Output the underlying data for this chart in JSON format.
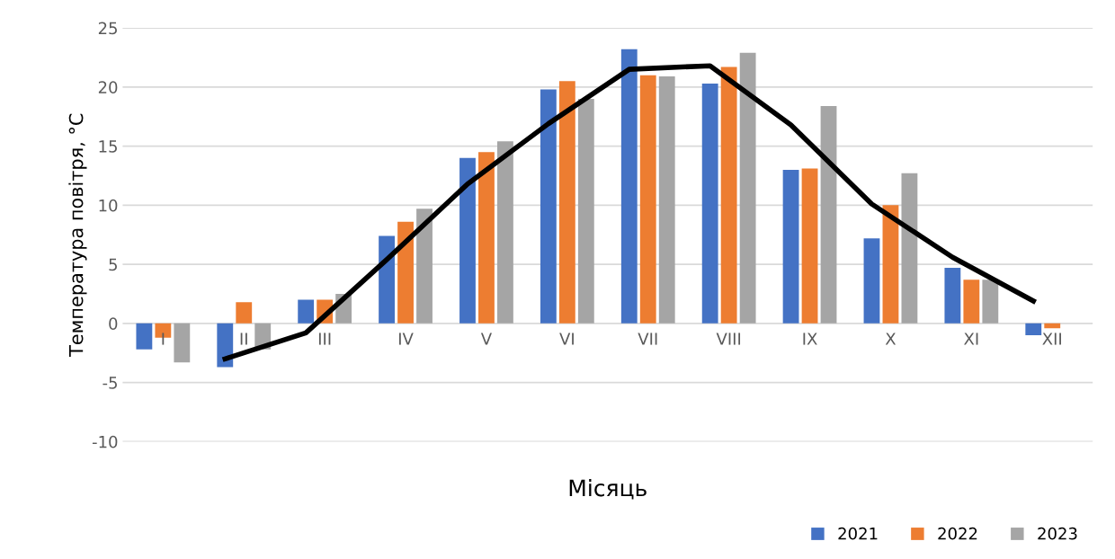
{
  "chart_data": {
    "type": "bar",
    "xlabel": "Місяць",
    "ylabel": "Температура повітря, °C",
    "categories": [
      "I",
      "II",
      "III",
      "IV",
      "V",
      "VI",
      "VII",
      "VIII",
      "IX",
      "X",
      "XI",
      "XII"
    ],
    "series": [
      {
        "name": "2021",
        "color": "#4472c4",
        "values": [
          -2.2,
          -3.7,
          2.0,
          7.4,
          14.0,
          19.8,
          23.2,
          20.3,
          13.0,
          7.2,
          4.7,
          -1.0
        ]
      },
      {
        "name": "2022",
        "color": "#ed7d31",
        "values": [
          -1.2,
          1.8,
          2.0,
          8.6,
          14.5,
          20.5,
          21.0,
          21.7,
          13.1,
          10.0,
          3.7,
          -0.4
        ]
      },
      {
        "name": "2023",
        "color": "#a5a5a5",
        "values": [
          -3.3,
          -2.2,
          2.5,
          9.7,
          15.4,
          19.0,
          20.9,
          22.9,
          18.4,
          12.7,
          3.7,
          0
        ]
      },
      {
        "type": "line",
        "color": "#000000",
        "values": [
          null,
          -3.0,
          -0.8,
          5.4,
          11.8,
          16.9,
          21.5,
          21.8,
          16.8,
          10.1,
          5.6,
          1.9
        ]
      }
    ],
    "ylim": [
      -10,
      25
    ],
    "yticks": [
      -10,
      -5,
      0,
      5,
      10,
      15,
      20,
      25
    ],
    "grid": "y",
    "legend": "bottom right"
  }
}
